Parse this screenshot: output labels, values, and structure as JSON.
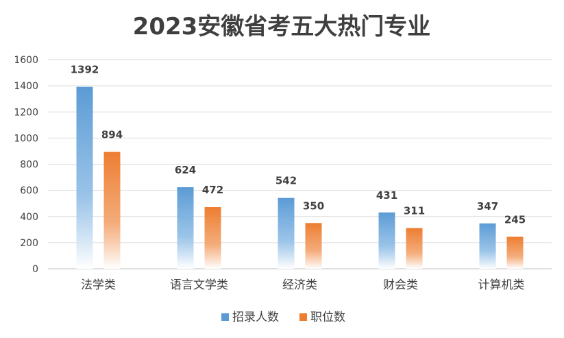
{
  "chart_data": {
    "type": "bar",
    "title": "2023安徽省考五大热门专业",
    "categories": [
      "法学类",
      "语言文学类",
      "经济类",
      "财会类",
      "计算机类"
    ],
    "series": [
      {
        "name": "招录人数",
        "values": [
          1392,
          624,
          542,
          431,
          347
        ],
        "color": "#5b9bd5"
      },
      {
        "name": "职位数",
        "values": [
          894,
          472,
          350,
          311,
          245
        ],
        "color": "#ed7d31"
      }
    ],
    "ylim": [
      0,
      1600
    ],
    "yticks": [
      0,
      200,
      400,
      600,
      800,
      1000,
      1200,
      1400,
      1600
    ],
    "grid": true,
    "legend": "bottom"
  }
}
